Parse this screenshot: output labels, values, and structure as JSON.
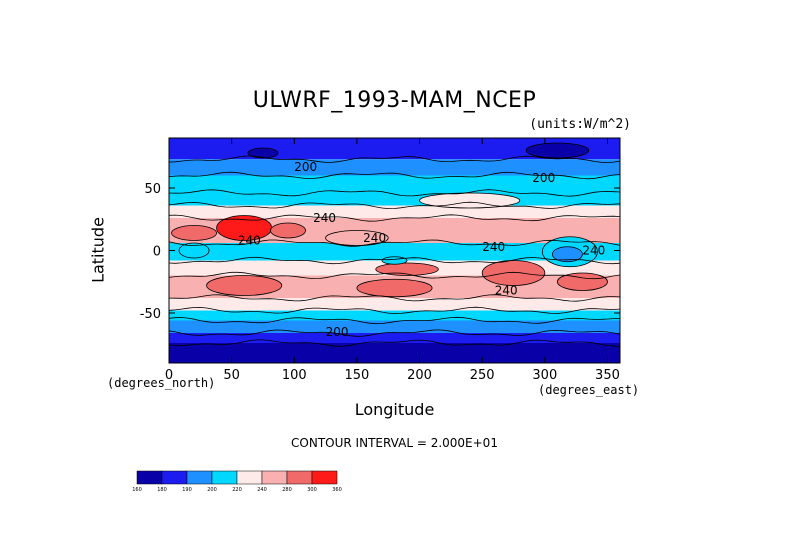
{
  "chart_data": {
    "type": "heatmap",
    "title": "ULWRF_1993-MAM_NCEP",
    "units": "(units:W/m^2)",
    "xlabel": "Longitude",
    "ylabel": "Latitude",
    "x_unit": "(degrees_east)",
    "y_unit": "(degrees_north)",
    "xlim": [
      0,
      360
    ],
    "ylim": [
      -90,
      90
    ],
    "x_ticks": [
      "0",
      "50",
      "100",
      "150",
      "200",
      "250",
      "300",
      "350"
    ],
    "y_ticks": [
      "50",
      "0",
      "-50"
    ],
    "contour_interval": "CONTOUR INTERVAL = 2.000E+01",
    "contour_labels": [
      "200",
      "200",
      "240",
      "240",
      "240",
      "240",
      "240",
      "240",
      "200"
    ],
    "colorbar": {
      "levels": [
        "160",
        "180",
        "190",
        "200",
        "220",
        "240",
        "280",
        "300",
        "360"
      ],
      "colors": [
        "#0a00a8",
        "#1c1cf0",
        "#1e90ff",
        "#00d8ff",
        "#ffeaea",
        "#f8b0b0",
        "#f06a6a",
        "#ff1a1a"
      ]
    },
    "bands": [
      {
        "lat_from": 90,
        "lat_to": 73,
        "class": 2
      },
      {
        "lat_from": 73,
        "lat_to": 60,
        "class": 3
      },
      {
        "lat_from": 60,
        "lat_to": 46,
        "class": 4
      },
      {
        "lat_from": 46,
        "lat_to": 36,
        "class": 4
      },
      {
        "lat_from": 36,
        "lat_to": 26,
        "class": 5
      },
      {
        "lat_from": 26,
        "lat_to": 6,
        "class": 6
      },
      {
        "lat_from": 6,
        "lat_to": -8,
        "class": 4
      },
      {
        "lat_from": -8,
        "lat_to": -20,
        "class": 5
      },
      {
        "lat_from": -20,
        "lat_to": -38,
        "class": 6
      },
      {
        "lat_from": -38,
        "lat_to": -48,
        "class": 5
      },
      {
        "lat_from": -48,
        "lat_to": -56,
        "class": 4
      },
      {
        "lat_from": -56,
        "lat_to": -66,
        "class": 3
      },
      {
        "lat_from": -66,
        "lat_to": -74,
        "class": 2
      },
      {
        "lat_from": -74,
        "lat_to": -90,
        "class": 1
      }
    ],
    "blobs": [
      {
        "lon": 60,
        "lat": 18,
        "rlon": 22,
        "rlat": 10,
        "class": 8
      },
      {
        "lon": 95,
        "lat": 16,
        "rlon": 14,
        "rlat": 6,
        "class": 7
      },
      {
        "lon": 20,
        "lat": 14,
        "rlon": 18,
        "rlat": 6,
        "class": 7
      },
      {
        "lon": 20,
        "lat": 0,
        "rlon": 12,
        "rlat": 6,
        "class": 4
      },
      {
        "lon": 150,
        "lat": 10,
        "rlon": 25,
        "rlat": 6,
        "class": 6
      },
      {
        "lon": 320,
        "lat": -1,
        "rlon": 22,
        "rlat": 12,
        "class": 4
      },
      {
        "lon": 318,
        "lat": -3,
        "rlon": 12,
        "rlat": 6,
        "class": 3
      },
      {
        "lon": 275,
        "lat": -18,
        "rlon": 25,
        "rlat": 10,
        "class": 7
      },
      {
        "lon": 190,
        "lat": -15,
        "rlon": 25,
        "rlat": 5,
        "class": 7
      },
      {
        "lon": 60,
        "lat": -28,
        "rlon": 30,
        "rlat": 8,
        "class": 7
      },
      {
        "lon": 180,
        "lat": -30,
        "rlon": 30,
        "rlat": 7,
        "class": 7
      },
      {
        "lon": 330,
        "lat": -25,
        "rlon": 20,
        "rlat": 7,
        "class": 7
      },
      {
        "lon": 310,
        "lat": 80,
        "rlon": 25,
        "rlat": 6,
        "class": 1
      },
      {
        "lon": 75,
        "lat": 78,
        "rlon": 12,
        "rlat": 4,
        "class": 1
      },
      {
        "lon": 240,
        "lat": 40,
        "rlon": 40,
        "rlat": 6,
        "class": 5
      },
      {
        "lon": 180,
        "lat": -8,
        "rlon": 10,
        "rlat": 3,
        "class": 4
      }
    ],
    "grid": false,
    "legend": "bottom-left"
  }
}
